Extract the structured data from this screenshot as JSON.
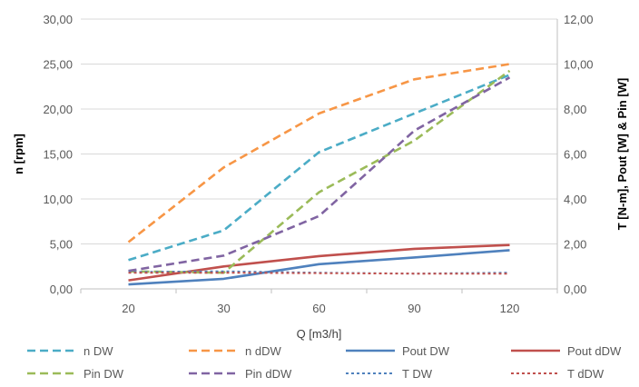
{
  "chart_data": {
    "type": "line",
    "categories": [
      "20",
      "30",
      "60",
      "90",
      "120"
    ],
    "xlabel": "Q [m3/h]",
    "ylabel_left": "n [rpm]",
    "ylabel_right": "T [N-m], Pout [W] & Pin [W]",
    "ylim_left": [
      0,
      30
    ],
    "ylim_right": [
      0,
      12
    ],
    "yticks_left": [
      "0,00",
      "5,00",
      "10,00",
      "15,00",
      "20,00",
      "25,00",
      "30,00"
    ],
    "yticks_right": [
      "0,00",
      "2,00",
      "4,00",
      "6,00",
      "8,00",
      "10,00",
      "12,00"
    ],
    "grid": "horizontal",
    "legend_position": "bottom",
    "series": [
      {
        "name": "n DW",
        "axis": "left",
        "values": [
          3.2,
          6.5,
          15.2,
          19.5,
          23.8
        ],
        "color": "#4BACC6",
        "dash": "dashed"
      },
      {
        "name": "n dDW",
        "axis": "left",
        "values": [
          5.2,
          13.5,
          19.5,
          23.3,
          25.0
        ],
        "color": "#F79646",
        "dash": "dashed"
      },
      {
        "name": "Pout DW",
        "axis": "right",
        "values": [
          0.2,
          0.45,
          1.1,
          1.4,
          1.72
        ],
        "color": "#4F81BD",
        "dash": "solid"
      },
      {
        "name": "Pout dDW",
        "axis": "right",
        "values": [
          0.38,
          1.0,
          1.46,
          1.78,
          1.95
        ],
        "color": "#C0504D",
        "dash": "solid"
      },
      {
        "name": "Pin DW",
        "axis": "right",
        "values": [
          0.78,
          0.72,
          4.3,
          6.6,
          9.7
        ],
        "color": "#9BBB59",
        "dash": "dashed"
      },
      {
        "name": "Pin dDW",
        "axis": "right",
        "values": [
          0.8,
          1.48,
          3.24,
          7.04,
          9.4
        ],
        "color": "#8064A2",
        "dash": "dashed"
      },
      {
        "name": "T DW",
        "axis": "right",
        "values": [
          0.75,
          0.78,
          0.72,
          0.68,
          0.72
        ],
        "color": "#4F81BD",
        "dash": "dotted"
      },
      {
        "name": "T dDW",
        "axis": "right",
        "values": [
          0.72,
          0.72,
          0.7,
          0.68,
          0.68
        ],
        "color": "#C0504D",
        "dash": "dotted"
      }
    ]
  }
}
